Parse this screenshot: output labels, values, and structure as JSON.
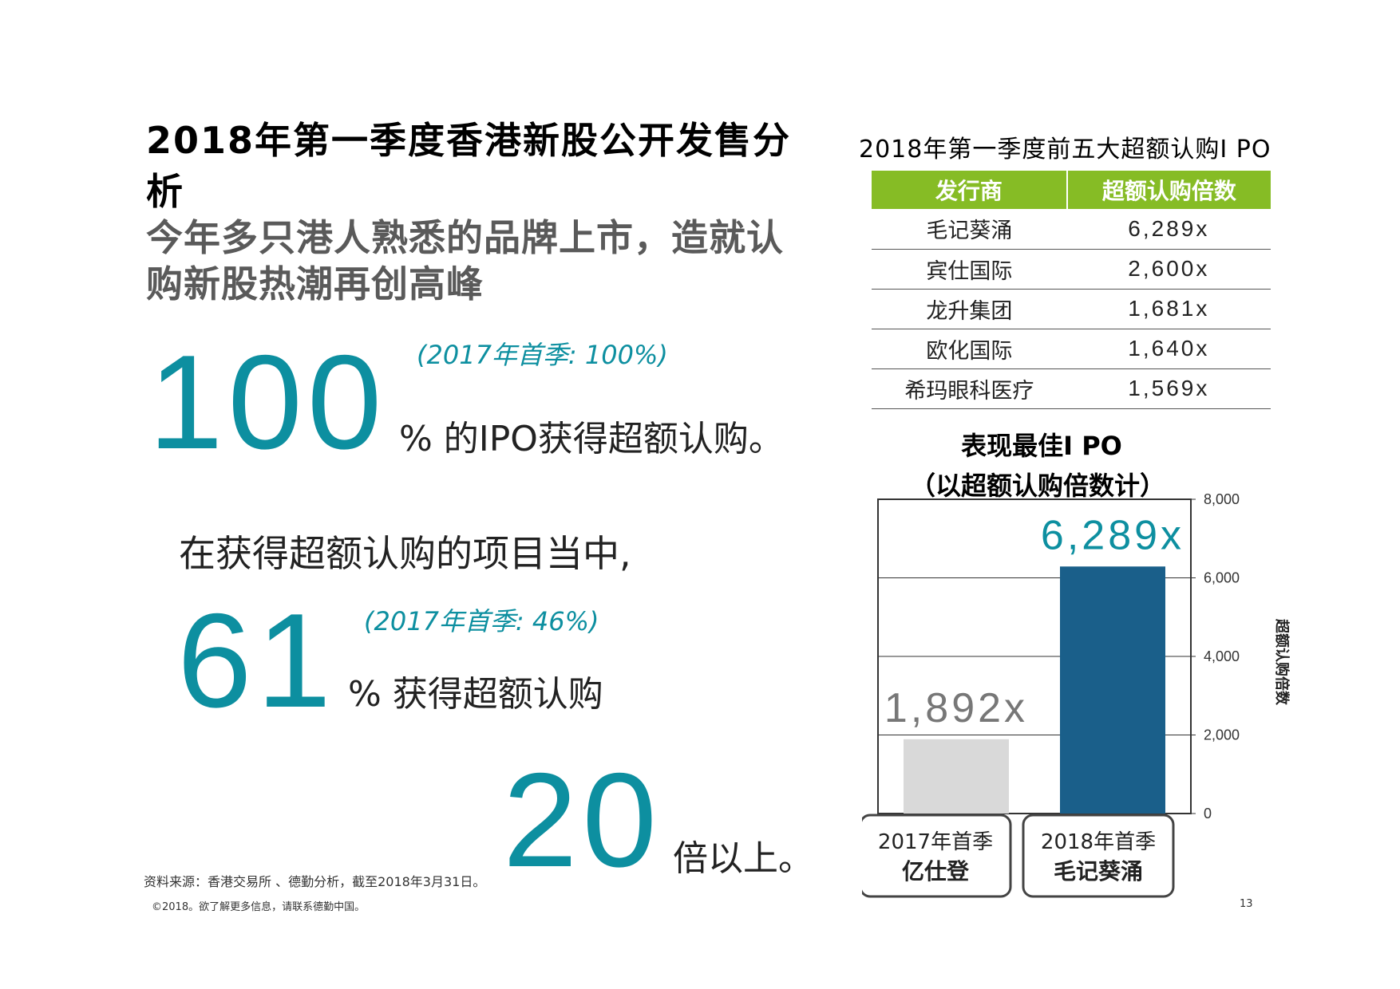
{
  "title": {
    "line1": "2018年第一季度香港新股公开发售分",
    "line2": "析"
  },
  "subtitle": {
    "line1": "今年多只港人熟悉的品牌上市，造就认",
    "line2": "购新股热潮再创高峰"
  },
  "stats": {
    "stat1": {
      "number": "100",
      "note": "(2017年首季: 100%)",
      "text": "% 的IPO获得超额认购。"
    },
    "stat2": {
      "intro": "在获得超额认购的项目当中,",
      "number": "61",
      "note": "(2017年首季: 46%)",
      "text": "% 获得超额认购"
    },
    "stat3": {
      "number": "20",
      "text": "倍以上。"
    }
  },
  "footer": {
    "source": "资料来源：香港交易所 、德勤分析，截至2018年3月31日。",
    "copyright": "©2018。欲了解更多信息，请联系德勤中国。",
    "page": "13"
  },
  "table": {
    "title": "2018年第一季度前五大超额认购I PO",
    "headers": [
      "发行商",
      "超额认购倍数"
    ],
    "rows": [
      {
        "issuer": "毛记葵涌",
        "multiple": "6,289x"
      },
      {
        "issuer": "宾仕国际",
        "multiple": "2,600x"
      },
      {
        "issuer": "龙升集团",
        "multiple": "1,681x"
      },
      {
        "issuer": "欧化国际",
        "multiple": "1,640x"
      },
      {
        "issuer": "希玛眼科医疗",
        "multiple": "1,569x"
      }
    ],
    "header_color": "#86bc25"
  },
  "chart_data": {
    "type": "bar",
    "title": "表现最佳I PO",
    "subtitle": "（以超额认购倍数计）",
    "categories": [
      {
        "line1": "2017年首季",
        "line2": "亿仕登"
      },
      {
        "line1": "2018年首季",
        "line2": "毛记葵涌"
      }
    ],
    "values": [
      1892,
      6289
    ],
    "value_labels": [
      "1,892x",
      "6,289x"
    ],
    "colors": [
      "#d9d9d9",
      "#1a5f8a"
    ],
    "label_colors": [
      "#777777",
      "#0d8fa0"
    ],
    "ylim": [
      0,
      8000
    ],
    "yticks": [
      {
        "value": 0,
        "label": "0"
      },
      {
        "value": 2000,
        "label": "2,000"
      },
      {
        "value": 4000,
        "label": "4,000"
      },
      {
        "value": 6000,
        "label": "6,000"
      },
      {
        "value": 8000,
        "label": "8,000"
      }
    ],
    "ylabel": "超额认购倍数",
    "grid": true
  }
}
